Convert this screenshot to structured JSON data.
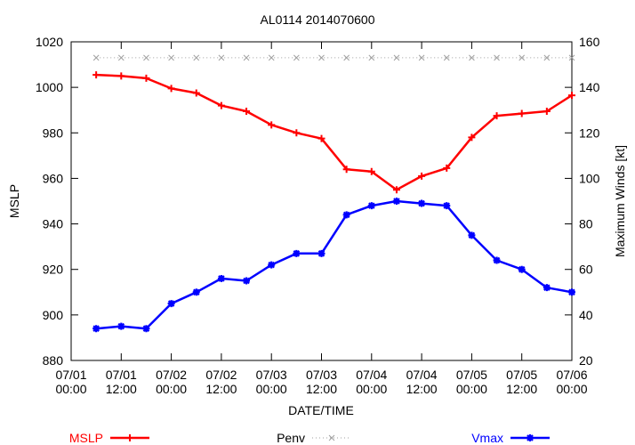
{
  "chart_data": {
    "type": "line",
    "title": "AL0114 2014070600",
    "xlabel": "DATE/TIME",
    "ylabel": "MSLP",
    "y2label": "Maximum Winds [kt]",
    "x_ticks": [
      {
        "date": "07/01",
        "time": "00:00"
      },
      {
        "date": "07/01",
        "time": "12:00"
      },
      {
        "date": "07/02",
        "time": "00:00"
      },
      {
        "date": "07/02",
        "time": "12:00"
      },
      {
        "date": "07/03",
        "time": "00:00"
      },
      {
        "date": "07/03",
        "time": "12:00"
      },
      {
        "date": "07/04",
        "time": "00:00"
      },
      {
        "date": "07/04",
        "time": "12:00"
      },
      {
        "date": "07/05",
        "time": "00:00"
      },
      {
        "date": "07/05",
        "time": "12:00"
      },
      {
        "date": "07/06",
        "time": "00:00"
      }
    ],
    "xlim": [
      "2014-07-01 00:00",
      "2014-07-06 00:00"
    ],
    "ylim": [
      880,
      1020
    ],
    "y_ticks": [
      880,
      900,
      920,
      940,
      960,
      980,
      1000,
      1020
    ],
    "y2lim": [
      20,
      160
    ],
    "y2_ticks": [
      20,
      40,
      60,
      80,
      100,
      120,
      140,
      160
    ],
    "grid": false,
    "legend_placement": "bottom",
    "series": [
      {
        "name": "MSLP",
        "axis": "left",
        "color": "#ff0000",
        "marker": "plus",
        "x": [
          "2014-07-01 06:00",
          "2014-07-01 12:00",
          "2014-07-01 18:00",
          "2014-07-02 00:00",
          "2014-07-02 06:00",
          "2014-07-02 12:00",
          "2014-07-02 18:00",
          "2014-07-03 00:00",
          "2014-07-03 06:00",
          "2014-07-03 12:00",
          "2014-07-03 18:00",
          "2014-07-04 00:00",
          "2014-07-04 06:00",
          "2014-07-04 12:00",
          "2014-07-04 18:00",
          "2014-07-05 00:00",
          "2014-07-05 06:00",
          "2014-07-05 12:00",
          "2014-07-05 18:00",
          "2014-07-06 00:00"
        ],
        "values": [
          1005.5,
          1005,
          1004,
          999.5,
          997.5,
          992,
          989.5,
          983.5,
          980,
          977.5,
          964,
          963,
          955,
          961,
          964.5,
          978,
          987.5,
          988.5,
          989.5,
          996.5
        ]
      },
      {
        "name": "Penv",
        "axis": "left",
        "color": "#a0a0a0",
        "marker": "x",
        "line": "dotted",
        "x": [
          "2014-07-01 06:00",
          "2014-07-01 12:00",
          "2014-07-01 18:00",
          "2014-07-02 00:00",
          "2014-07-02 06:00",
          "2014-07-02 12:00",
          "2014-07-02 18:00",
          "2014-07-03 00:00",
          "2014-07-03 06:00",
          "2014-07-03 12:00",
          "2014-07-03 18:00",
          "2014-07-04 00:00",
          "2014-07-04 06:00",
          "2014-07-04 12:00",
          "2014-07-04 18:00",
          "2014-07-05 00:00",
          "2014-07-05 06:00",
          "2014-07-05 12:00",
          "2014-07-05 18:00",
          "2014-07-06 00:00"
        ],
        "values": [
          1013,
          1013,
          1013,
          1013,
          1013,
          1013,
          1013,
          1013,
          1013,
          1013,
          1013,
          1013,
          1013,
          1013,
          1013,
          1013,
          1013,
          1013,
          1013,
          1013
        ]
      },
      {
        "name": "Vmax",
        "axis": "right",
        "color": "#0000ff",
        "marker": "asterisk",
        "x": [
          "2014-07-01 06:00",
          "2014-07-01 12:00",
          "2014-07-01 18:00",
          "2014-07-02 00:00",
          "2014-07-02 06:00",
          "2014-07-02 12:00",
          "2014-07-02 18:00",
          "2014-07-03 00:00",
          "2014-07-03 06:00",
          "2014-07-03 12:00",
          "2014-07-03 18:00",
          "2014-07-04 00:00",
          "2014-07-04 06:00",
          "2014-07-04 12:00",
          "2014-07-04 18:00",
          "2014-07-05 00:00",
          "2014-07-05 06:00",
          "2014-07-05 12:00",
          "2014-07-05 18:00",
          "2014-07-06 00:00"
        ],
        "values": [
          34,
          35,
          34,
          45,
          50,
          56,
          55,
          62,
          67,
          67,
          84,
          88,
          90,
          89,
          88,
          75,
          64,
          60,
          52,
          50
        ]
      }
    ]
  }
}
